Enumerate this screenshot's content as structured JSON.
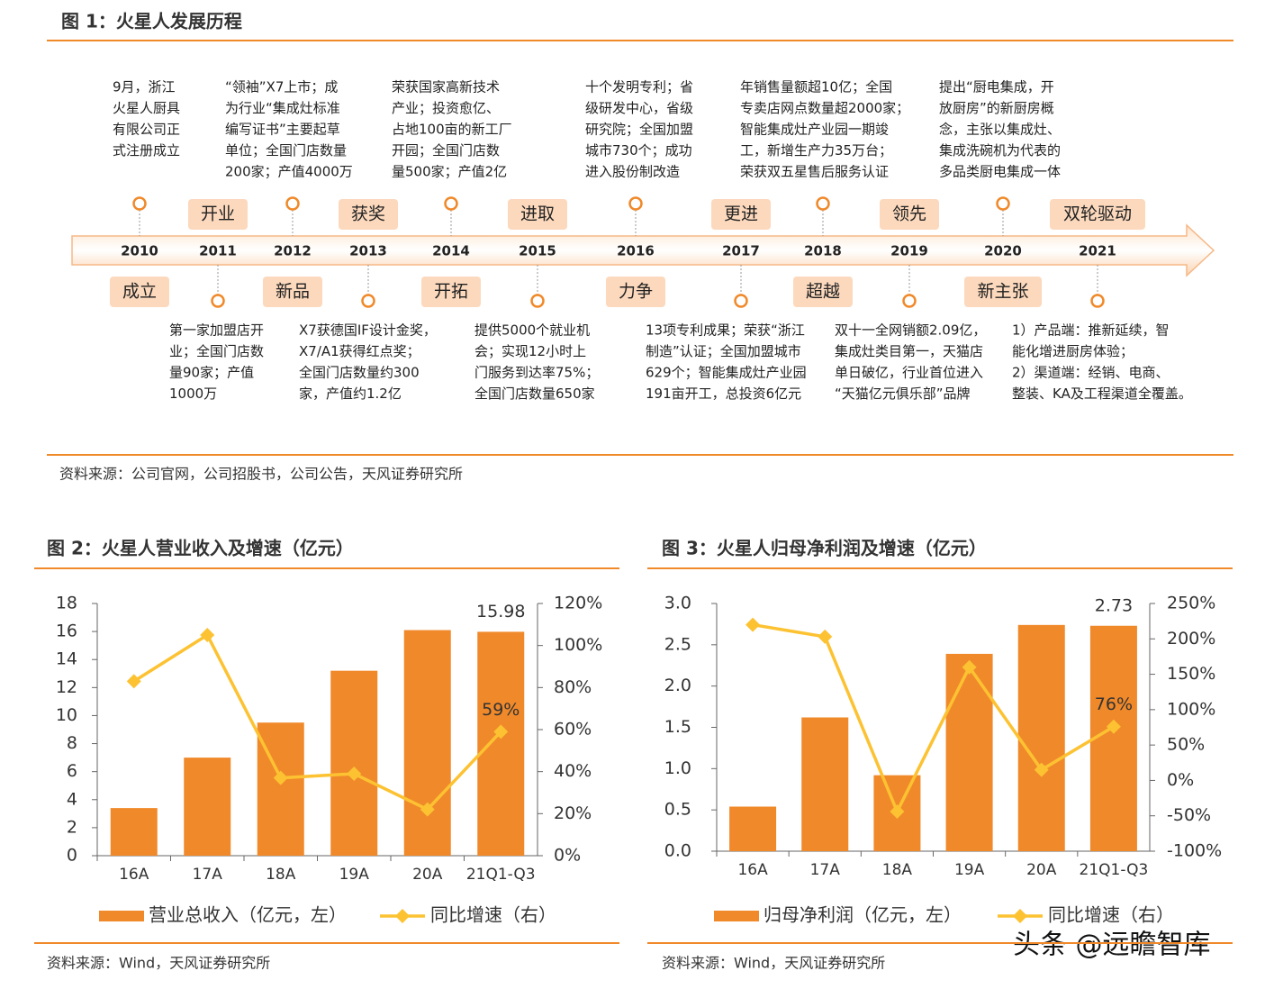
{
  "figure1": {
    "title": "图 1：火星人发展历程",
    "items": [
      {
        "year": "2010",
        "keyword": "成立",
        "description": [
          "9月，浙江",
          "火星人厨具",
          "有限公司正",
          "式注册成立"
        ]
      },
      {
        "year": "2011",
        "keyword": "开业",
        "description": [
          "第一家加盟店开",
          "业；全国门店数",
          "量90家；产值",
          "1000万"
        ]
      },
      {
        "year": "2012",
        "keyword": "新品",
        "description": [
          "“领袖”X7上市；成",
          "为行业“集成灶标准",
          "编写证书”主要起草",
          "单位；全国门店数量",
          "200家；产值4000万"
        ]
      },
      {
        "year": "2013",
        "keyword": "获奖",
        "description": [
          "X7获德国IF设计金奖，",
          "X7/A1获得红点奖；",
          "全国门店数量约300",
          "家，产值约1.2亿"
        ]
      },
      {
        "year": "2014",
        "keyword": "开拓",
        "description": [
          "荣获国家高新技术",
          "产业；投资愈亿、",
          "占地100亩的新工厂",
          "开园；全国门店数",
          "量500家；产值2亿"
        ]
      },
      {
        "year": "2015",
        "keyword": "进取",
        "description": [
          "提供5000个就业机",
          "会；实现12小时上",
          "门服务到达率75%；",
          "全国门店数量650家"
        ]
      },
      {
        "year": "2016",
        "keyword": "力争",
        "description": [
          "十个发明专利；省",
          "级研发中心，省级",
          "研究院；全国加盟",
          "城市730个；成功",
          "进入股份制改造"
        ]
      },
      {
        "year": "2017",
        "keyword": "更进",
        "description": [
          "13项专利成果；荣获“浙江",
          "制造”认证；全国加盟城市",
          "629个；智能集成灶产业园",
          "191亩开工，总投资6亿元"
        ]
      },
      {
        "year": "2018",
        "keyword": "超越",
        "description": [
          "年销售量额超10亿；全国",
          "专卖店网点数量超2000家；",
          "智能集成灶产业园一期竣",
          "工，新增生产力35万台；",
          "荣获双五星售后服务认证"
        ]
      },
      {
        "year": "2019",
        "keyword": "领先",
        "description": [
          "双十一全网销额2.09亿，",
          "集成灶类目第一，天猫店",
          "单日破亿，行业首位进入",
          "“天猫亿元俱乐部”品牌"
        ]
      },
      {
        "year": "2020",
        "keyword": "新主张",
        "description": [
          "提出“厨电集成，开",
          "放厨房”的新厨房概",
          "念，主张以集成灶、",
          "集成洗碗机为代表的",
          "多品类厨电集成一体"
        ]
      },
      {
        "year": "2021",
        "keyword": "双轮驱动",
        "description": [
          "1）产品端：推新延续，智",
          "能化增进厨房体验；",
          "2）渠道端：经销、电商、",
          "整装、KA及工程渠道全覆盖。"
        ]
      }
    ],
    "source": "资料来源：公司官网，公司招股书，公司公告，天风证券研究所"
  },
  "chart_data": [
    {
      "type": "combo",
      "title": "图 2：火星人营业收入及增速（亿元）",
      "categories": [
        "16A",
        "17A",
        "18A",
        "19A",
        "20A",
        "21Q1-Q3"
      ],
      "series": [
        {
          "name": "营业总收入（亿元，左）",
          "type": "bar",
          "color": "#f0892a",
          "values": [
            3.4,
            7.0,
            9.5,
            13.2,
            16.1,
            15.98
          ],
          "value_labels": [
            null,
            null,
            null,
            null,
            null,
            "15.98"
          ]
        },
        {
          "name": "同比增速（右）",
          "type": "line",
          "axis": "y2",
          "color": "#fcc232",
          "values": [
            83,
            105,
            37,
            39,
            22,
            59
          ],
          "value_labels": [
            null,
            null,
            null,
            null,
            null,
            "59%"
          ]
        }
      ],
      "ylim": [
        0,
        18
      ],
      "yticks": [
        0,
        2,
        4,
        6,
        8,
        10,
        12,
        14,
        16,
        18
      ],
      "y2lim": [
        0,
        120
      ],
      "y2ticks": [
        {
          "value": 0,
          "label": "0%"
        },
        {
          "value": 20,
          "label": "20%"
        },
        {
          "value": 40,
          "label": "40%"
        },
        {
          "value": 60,
          "label": "60%"
        },
        {
          "value": 80,
          "label": "80%"
        },
        {
          "value": 100,
          "label": "100%"
        },
        {
          "value": 120,
          "label": "120%"
        }
      ],
      "source": "资料来源：Wind，天风证券研究所"
    },
    {
      "type": "combo",
      "title": "图 3：火星人归母净利润及增速（亿元）",
      "categories": [
        "16A",
        "17A",
        "18A",
        "19A",
        "20A",
        "21Q1-Q3"
      ],
      "series": [
        {
          "name": "归母净利润（亿元，左）",
          "type": "bar",
          "color": "#f0892a",
          "values": [
            0.54,
            1.62,
            0.92,
            2.39,
            2.74,
            2.73
          ],
          "value_labels": [
            null,
            null,
            null,
            null,
            null,
            "2.73"
          ]
        },
        {
          "name": "同比增速（右）",
          "type": "line",
          "axis": "y2",
          "color": "#fcc232",
          "values": [
            220,
            203,
            -44,
            160,
            15,
            76
          ],
          "value_labels": [
            null,
            null,
            null,
            null,
            null,
            "76%"
          ]
        }
      ],
      "ylim": [
        0,
        3
      ],
      "yticks": [
        {
          "value": 0,
          "label": "0.0"
        },
        0.5,
        {
          "value": 1,
          "label": "1.0"
        },
        1.5,
        {
          "value": 2,
          "label": "2.0"
        },
        2.5,
        {
          "value": 3,
          "label": "3.0"
        }
      ],
      "y2lim": [
        -100,
        250
      ],
      "y2ticks": [
        {
          "value": -100,
          "label": "-100%"
        },
        {
          "value": -50,
          "label": "-50%"
        },
        {
          "value": 0,
          "label": "0%"
        },
        {
          "value": 50,
          "label": "50%"
        },
        {
          "value": 100,
          "label": "100%"
        },
        {
          "value": 150,
          "label": "150%"
        },
        {
          "value": 200,
          "label": "200%"
        },
        {
          "value": 250,
          "label": "250%"
        }
      ],
      "source": "资料来源：Wind，天风证券研究所"
    }
  ],
  "watermark": "头条 @远瞻智库"
}
